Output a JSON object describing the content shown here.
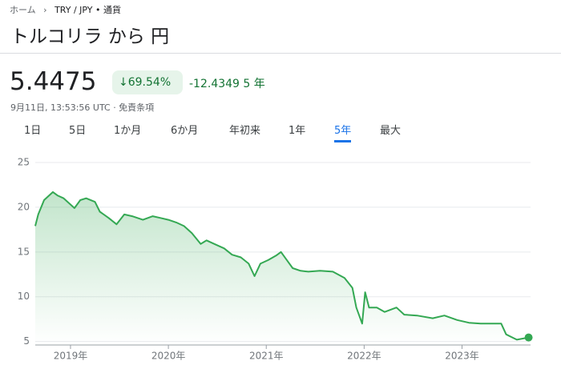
{
  "breadcrumb": {
    "home": "ホーム",
    "current": "TRY / JPY • 通貨"
  },
  "header": {
    "title": "トルコリラ から 円"
  },
  "quote": {
    "price": "5.4475",
    "change_percent": "69.54%",
    "change": "-12.4349",
    "period": "5 年",
    "timestamp": "9月11日, 13:53:56 UTC · 免責条項"
  },
  "tabs": [
    "1日",
    "5日",
    "1か月",
    "6か月",
    "年初来",
    "1年",
    "5年",
    "最大"
  ],
  "selected_tab": 6,
  "chart_data": {
    "type": "area",
    "x": [
      2018.64,
      2018.67,
      2018.73,
      2018.77,
      2018.82,
      2018.87,
      2018.93,
      2019.04,
      2019.1,
      2019.16,
      2019.25,
      2019.3,
      2019.39,
      2019.47,
      2019.55,
      2019.63,
      2019.74,
      2019.84,
      2019.92,
      2020.0,
      2020.08,
      2020.16,
      2020.24,
      2020.33,
      2020.39,
      2020.47,
      2020.57,
      2020.65,
      2020.74,
      2020.82,
      2020.88,
      2020.94,
      2021.02,
      2021.1,
      2021.15,
      2021.21,
      2021.27,
      2021.35,
      2021.43,
      2021.55,
      2021.68,
      2021.8,
      2021.88,
      2021.92,
      2021.98,
      2022.01,
      2022.05,
      2022.13,
      2022.21,
      2022.33,
      2022.41,
      2022.54,
      2022.7,
      2022.82,
      2022.95,
      2023.07,
      2023.19,
      2023.32,
      2023.4,
      2023.45,
      2023.56,
      2023.68
    ],
    "values": [
      17.9,
      19.2,
      20.8,
      21.2,
      21.7,
      21.3,
      21.0,
      19.9,
      20.8,
      21.0,
      20.6,
      19.5,
      18.8,
      18.1,
      19.2,
      19.0,
      18.6,
      19.0,
      18.8,
      18.6,
      18.3,
      17.9,
      17.1,
      15.9,
      16.3,
      15.9,
      15.4,
      14.7,
      14.4,
      13.7,
      12.3,
      13.7,
      14.1,
      14.6,
      15.0,
      14.1,
      13.2,
      12.9,
      12.8,
      12.9,
      12.8,
      12.1,
      11.0,
      8.8,
      7.0,
      10.5,
      8.8,
      8.8,
      8.3,
      8.8,
      8.0,
      7.9,
      7.6,
      7.9,
      7.4,
      7.1,
      7.0,
      7.0,
      7.0,
      5.8,
      5.2,
      5.45
    ],
    "color": "#34a853",
    "xlim": [
      2018.64,
      2023.7
    ],
    "xticks": [
      {
        "value": 2019,
        "label": "2019年"
      },
      {
        "value": 2020,
        "label": "2020年"
      },
      {
        "value": 2021,
        "label": "2021年"
      },
      {
        "value": 2022,
        "label": "2022年"
      },
      {
        "value": 2023,
        "label": "2023年"
      }
    ],
    "ylim": [
      4.7,
      25
    ],
    "yticks": [
      5,
      10,
      15,
      20,
      25
    ],
    "grid": true
  }
}
